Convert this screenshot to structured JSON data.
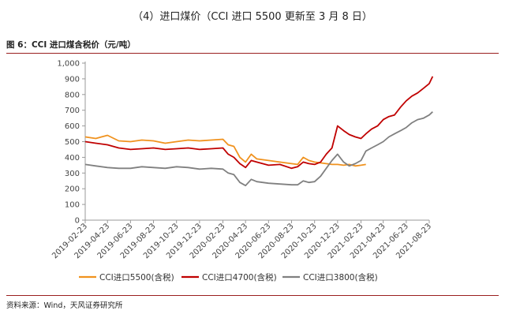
{
  "heading": "（4）进口煤价（CCI 进口 5500 更新至 3 月 8 日）",
  "figure_title": "图 6：CCI 进口煤含税价（元/吨）",
  "source": "资料来源：Wind，天风证券研究所",
  "chart_data": {
    "type": "line",
    "ylim": [
      0,
      1000
    ],
    "yticks": [
      "0",
      "100",
      "200",
      "300",
      "400",
      "500",
      "600",
      "700",
      "800",
      "900",
      "1,000"
    ],
    "xticks": [
      "2019-02-23",
      "2019-04-23",
      "2019-06-23",
      "2019-08-23",
      "2019-10-23",
      "2019-12-23",
      "2020-02-23",
      "2020-04-23",
      "2020-06-23",
      "2020-08-23",
      "2020-10-23",
      "2020-12-23",
      "2021-02-23",
      "2021-04-23",
      "2021-06-23",
      "2021-08-23"
    ],
    "legend_position": "bottom",
    "series": [
      {
        "name": "CCI进口5500(含税)",
        "color": "#f0921e",
        "x": [
          "2019-02-23",
          "2019-03-23",
          "2019-04-23",
          "2019-05-23",
          "2019-06-23",
          "2019-07-23",
          "2019-08-23",
          "2019-09-23",
          "2019-10-23",
          "2019-11-23",
          "2019-12-23",
          "2020-01-23",
          "2020-02-23",
          "2020-03-08",
          "2020-03-23",
          "2020-04-08",
          "2020-04-23",
          "2020-05-08",
          "2020-05-23",
          "2020-06-23",
          "2020-07-23",
          "2020-08-23",
          "2020-09-08",
          "2020-09-23",
          "2020-10-08",
          "2020-10-23",
          "2020-11-23",
          "2020-12-08",
          "2020-12-23",
          "2021-01-08",
          "2021-01-23",
          "2021-02-08",
          "2021-02-23",
          "2021-03-08"
        ],
        "values": [
          530,
          520,
          540,
          505,
          500,
          510,
          505,
          490,
          500,
          510,
          505,
          510,
          515,
          480,
          470,
          400,
          370,
          420,
          390,
          380,
          370,
          360,
          355,
          400,
          380,
          370,
          360,
          355,
          355,
          350,
          355,
          345,
          350,
          355
        ]
      },
      {
        "name": "CCI进口4700(含税)",
        "color": "#c00000",
        "x": [
          "2019-02-23",
          "2019-03-23",
          "2019-04-23",
          "2019-05-23",
          "2019-06-23",
          "2019-07-23",
          "2019-08-23",
          "2019-09-23",
          "2019-10-23",
          "2019-11-23",
          "2019-12-23",
          "2020-01-23",
          "2020-02-23",
          "2020-03-08",
          "2020-03-23",
          "2020-04-08",
          "2020-04-23",
          "2020-05-08",
          "2020-05-23",
          "2020-06-23",
          "2020-07-23",
          "2020-08-23",
          "2020-09-08",
          "2020-09-23",
          "2020-10-08",
          "2020-10-23",
          "2020-11-08",
          "2020-11-23",
          "2020-12-08",
          "2020-12-23",
          "2021-01-08",
          "2021-01-23",
          "2021-02-08",
          "2021-02-23",
          "2021-03-08",
          "2021-03-23",
          "2021-04-08",
          "2021-04-23",
          "2021-05-08",
          "2021-05-23",
          "2021-06-08",
          "2021-06-23",
          "2021-07-08",
          "2021-07-23",
          "2021-08-08",
          "2021-08-23",
          "2021-09-01"
        ],
        "values": [
          500,
          490,
          480,
          460,
          450,
          455,
          460,
          450,
          455,
          460,
          450,
          455,
          460,
          420,
          400,
          360,
          335,
          380,
          370,
          350,
          355,
          330,
          340,
          370,
          360,
          355,
          370,
          420,
          460,
          600,
          570,
          545,
          530,
          520,
          550,
          580,
          600,
          640,
          660,
          670,
          720,
          760,
          790,
          810,
          840,
          870,
          915
        ]
      },
      {
        "name": "CCI进口3800(含税)",
        "color": "#808080",
        "x": [
          "2019-02-23",
          "2019-03-23",
          "2019-04-23",
          "2019-05-23",
          "2019-06-23",
          "2019-07-23",
          "2019-08-23",
          "2019-09-23",
          "2019-10-23",
          "2019-11-23",
          "2019-12-23",
          "2020-01-23",
          "2020-02-23",
          "2020-03-08",
          "2020-03-23",
          "2020-04-08",
          "2020-04-23",
          "2020-05-08",
          "2020-05-23",
          "2020-06-23",
          "2020-07-23",
          "2020-08-23",
          "2020-09-08",
          "2020-09-23",
          "2020-10-08",
          "2020-10-23",
          "2020-11-08",
          "2020-11-23",
          "2020-12-08",
          "2020-12-23",
          "2021-01-08",
          "2021-01-23",
          "2021-02-08",
          "2021-02-23",
          "2021-03-08",
          "2021-03-23",
          "2021-04-08",
          "2021-04-23",
          "2021-05-08",
          "2021-05-23",
          "2021-06-08",
          "2021-06-23",
          "2021-07-08",
          "2021-07-23",
          "2021-08-08",
          "2021-08-23",
          "2021-09-01"
        ],
        "values": [
          355,
          345,
          335,
          330,
          330,
          340,
          335,
          330,
          340,
          335,
          325,
          330,
          325,
          300,
          290,
          240,
          220,
          260,
          245,
          235,
          230,
          225,
          225,
          250,
          240,
          245,
          280,
          330,
          380,
          420,
          370,
          345,
          360,
          380,
          440,
          460,
          480,
          500,
          530,
          550,
          570,
          590,
          620,
          640,
          650,
          670,
          690
        ]
      }
    ]
  }
}
